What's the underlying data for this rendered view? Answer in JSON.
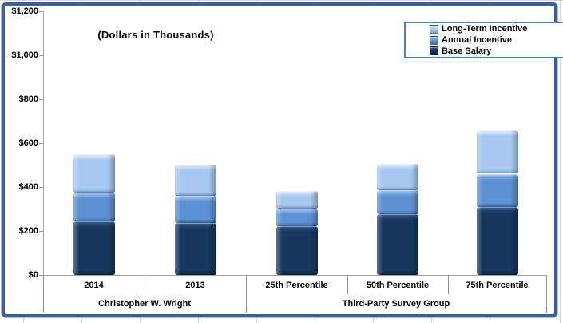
{
  "chart_title_note": "(Dollars in Thousands)",
  "colors": {
    "frame_border": "#3c5e99",
    "worksheet_gridline": "#ccd9ea",
    "axis_line": "#a3a3a3",
    "separator_line": "#8f8f8f",
    "legend_border": "#567db0"
  },
  "chart_data": {
    "type": "bar",
    "stacked": true,
    "title": "(Dollars in Thousands)",
    "categories": [
      "2014",
      "2013",
      "25th Percentile",
      "50th Percentile",
      "75th Percentile"
    ],
    "groups": [
      {
        "label": "Christopher W. Wright",
        "from": 0,
        "to": 1
      },
      {
        "label": "Third-Party Survey Group",
        "from": 2,
        "to": 4
      }
    ],
    "series": [
      {
        "name": "Base Salary",
        "values": [
          245,
          235,
          220,
          275,
          310
        ],
        "color": "#17375e",
        "light": "#2e5484",
        "dark": "#0e2440"
      },
      {
        "name": "Annual Incentive",
        "values": [
          130,
          125,
          80,
          110,
          150
        ],
        "color": "#5d91d4",
        "light": "#93bbec",
        "dark": "#3f6ea6"
      },
      {
        "name": "Long-Term Incentive",
        "values": [
          175,
          140,
          80,
          120,
          195
        ],
        "color": "#a6c8f0",
        "light": "#d4e6fb",
        "dark": "#7aa4d8"
      }
    ],
    "totals": [
      550,
      500,
      380,
      505,
      655
    ],
    "ylim": [
      0,
      1200
    ],
    "y_tick_step": 200,
    "y_tick_labels": [
      "$1,200",
      "$1,000",
      "$800",
      "$600",
      "$400",
      "$200",
      "$0"
    ],
    "xlabel": "",
    "ylabel": "",
    "gridlines": false,
    "legend_position": "top-right",
    "legend_order": [
      "Long-Term Incentive",
      "Annual Incentive",
      "Base Salary"
    ]
  }
}
